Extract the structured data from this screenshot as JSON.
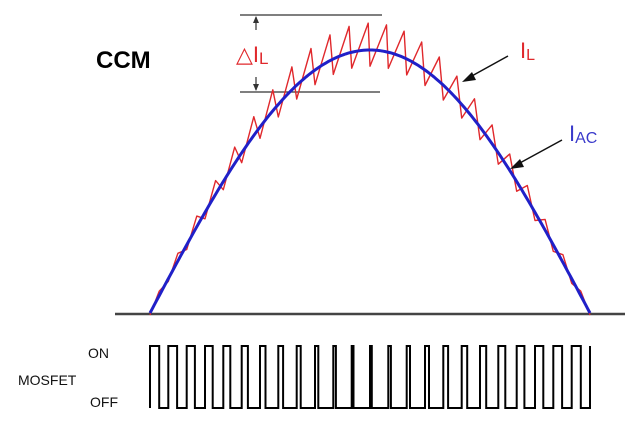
{
  "title": "CCM",
  "ripple_label": {
    "main": "△I",
    "sub": "L"
  },
  "inductor_label": {
    "main": "I",
    "sub": "L"
  },
  "ac_label": {
    "main": "I",
    "sub": "AC"
  },
  "switch_label": "MOSFET",
  "on_label": "ON",
  "off_label": "OFF",
  "colors": {
    "inductor_current": "#e0282c",
    "ac_current": "#2020c8",
    "axis": "#444444",
    "pwm": "#000000"
  },
  "pulse_duties": [
    0.5,
    0.48,
    0.45,
    0.42,
    0.38,
    0.34,
    0.3,
    0.26,
    0.22,
    0.18,
    0.14,
    0.1,
    0.1,
    0.14,
    0.18,
    0.22,
    0.26,
    0.3,
    0.34,
    0.38,
    0.42,
    0.45,
    0.48,
    0.5
  ]
}
